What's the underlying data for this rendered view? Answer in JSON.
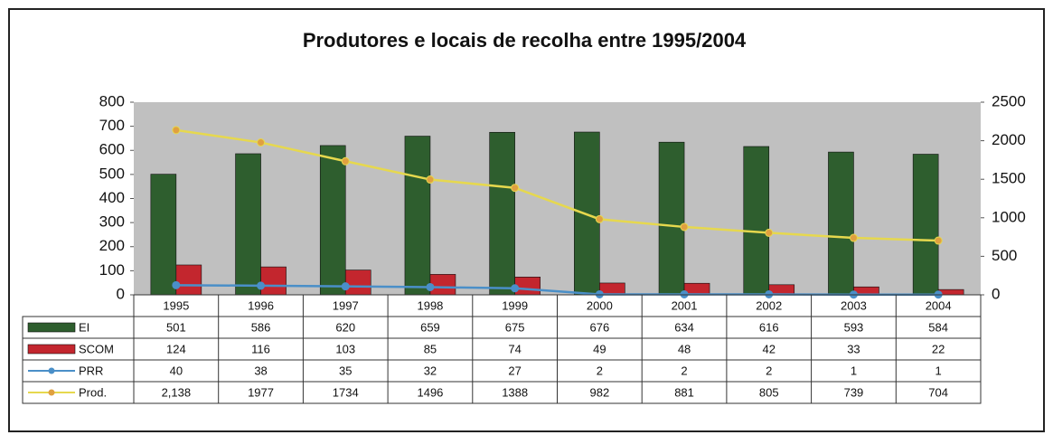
{
  "chart_data": {
    "type": "bar",
    "title": "Produtores e locais de recolha entre 1995/2004",
    "categories": [
      "1995",
      "1996",
      "1997",
      "1998",
      "1999",
      "2000",
      "2001",
      "2002",
      "2003",
      "2004"
    ],
    "series": [
      {
        "name": "EI",
        "type": "bar",
        "color": "#2e5e2e",
        "values": [
          501,
          586,
          620,
          659,
          675,
          676,
          634,
          616,
          593,
          584
        ]
      },
      {
        "name": "SCOM",
        "type": "bar",
        "color": "#c3262e",
        "values": [
          124,
          116,
          103,
          85,
          74,
          49,
          48,
          42,
          33,
          22
        ]
      },
      {
        "name": "PRR",
        "type": "line",
        "color": "#4a8fc8",
        "values": [
          40,
          38,
          35,
          32,
          27,
          2,
          2,
          2,
          1,
          1
        ]
      },
      {
        "name": "Prod.",
        "type": "line",
        "axis": "y2",
        "color": "#e6d84e",
        "marker_color": "#e0a040",
        "values": [
          2138,
          1977,
          1734,
          1496,
          1388,
          982,
          881,
          805,
          739,
          704
        ],
        "value_labels": [
          "2,138",
          "1977",
          "1734",
          "1496",
          "1388",
          "982",
          "881",
          "805",
          "739",
          "704"
        ]
      }
    ],
    "ylim": [
      0,
      800
    ],
    "yticks": [
      0,
      100,
      200,
      300,
      400,
      500,
      600,
      700,
      800
    ],
    "y2lim": [
      0,
      2500
    ],
    "y2ticks": [
      0,
      500,
      1000,
      1500,
      2000,
      2500
    ]
  }
}
